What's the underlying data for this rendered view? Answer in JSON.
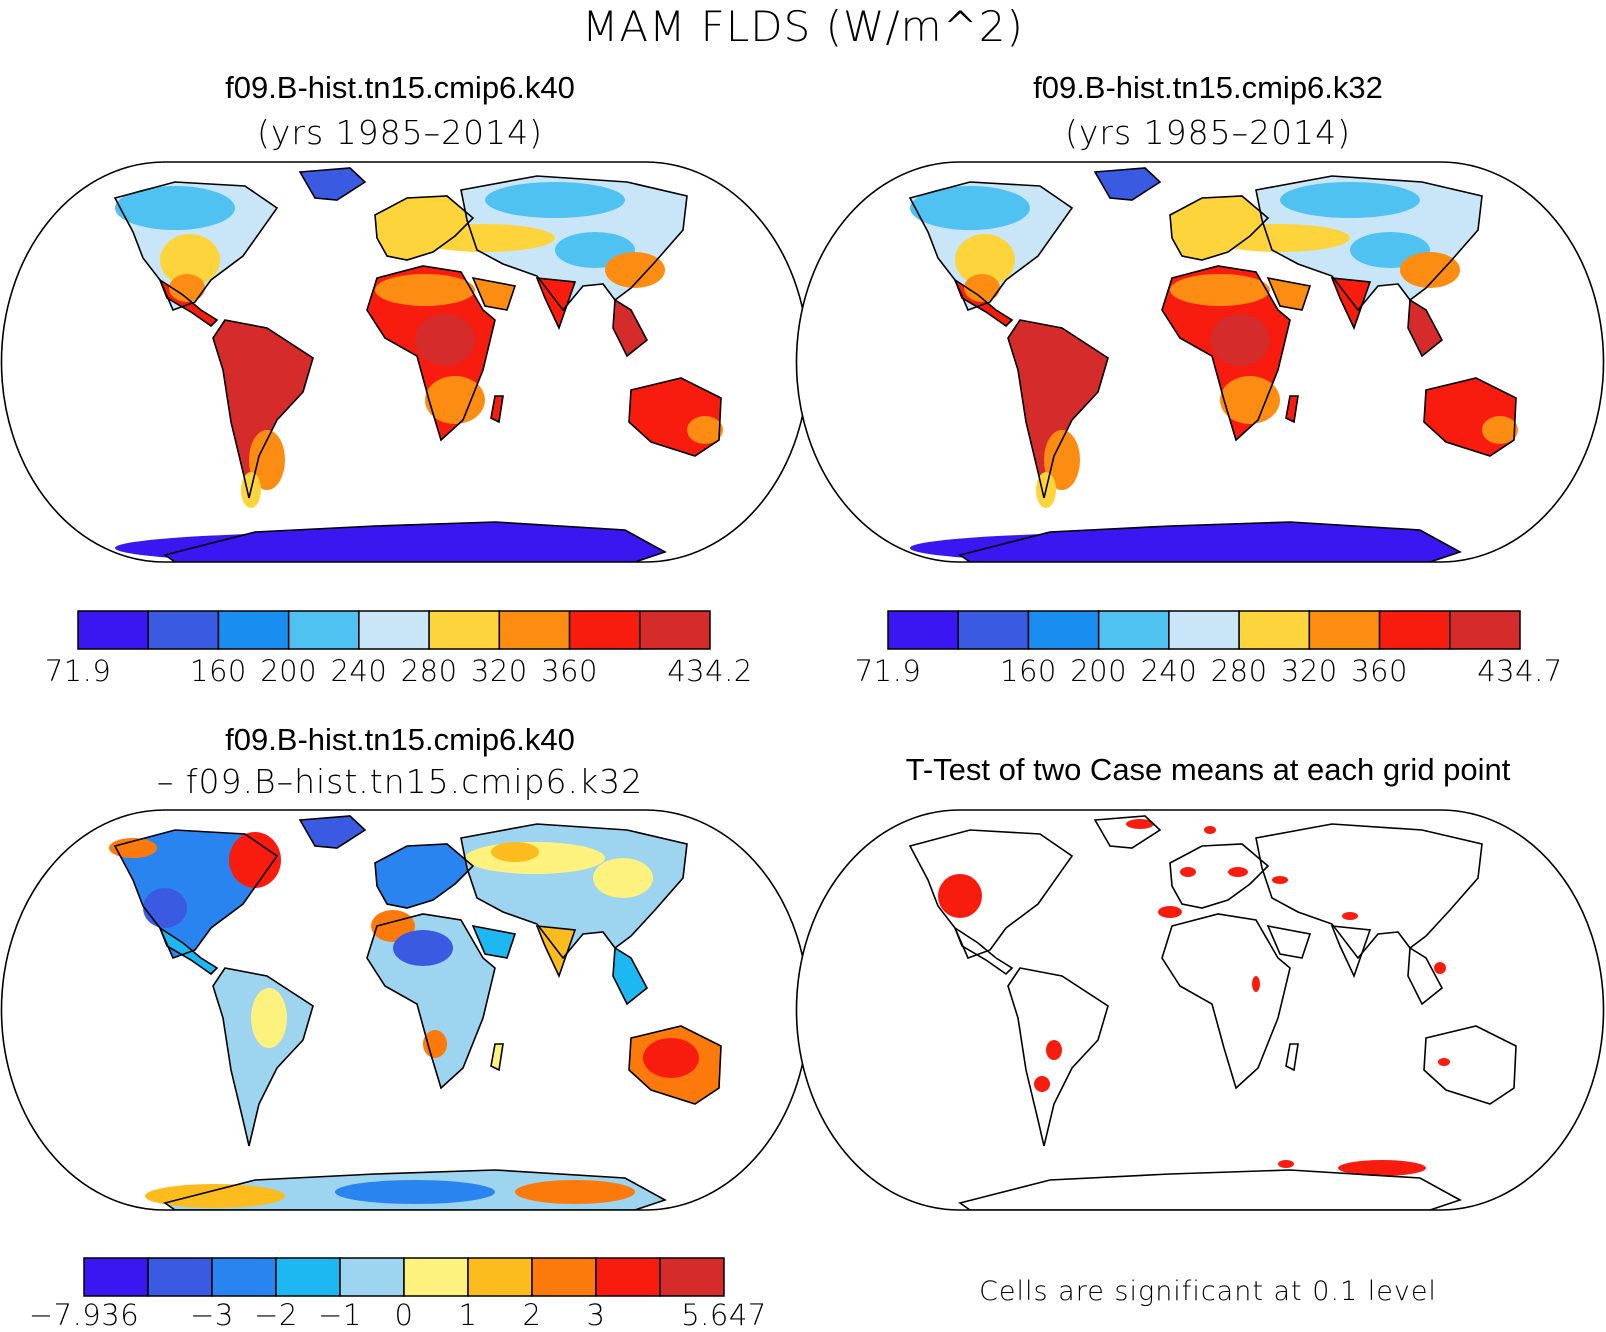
{
  "main_title": "MAM FLDS (W/m^2)",
  "panels": {
    "top_left": {
      "title": "f09.B-hist.tn15.cmip6.k40",
      "subtitle": "(yrs 1985–2014)"
    },
    "top_right": {
      "title": "f09.B-hist.tn15.cmip6.k32",
      "subtitle": "(yrs 1985–2014)"
    },
    "bottom_left": {
      "title": "f09.B-hist.tn15.cmip6.k40",
      "subtitle": "– f09.B–hist.tn15.cmip6.k32"
    },
    "bottom_right": {
      "title": "T-Test of two Case means at each grid point",
      "note": "Cells are significant at 0.1 level"
    }
  },
  "colorbars": {
    "flds_k40": {
      "colors": [
        "#3a16f0",
        "#3b5ae2",
        "#1a8ef0",
        "#4fc2f2",
        "#c8e6f7",
        "#fdd43c",
        "#fd8c12",
        "#f81c0e",
        "#d62b2b"
      ],
      "labels": [
        {
          "text": "71.9",
          "pos": 0
        },
        {
          "text": "160",
          "pos": 2
        },
        {
          "text": "200",
          "pos": 3
        },
        {
          "text": "240",
          "pos": 4
        },
        {
          "text": "280",
          "pos": 5
        },
        {
          "text": "320",
          "pos": 6
        },
        {
          "text": "360",
          "pos": 7
        },
        {
          "text": "434.2",
          "pos": 9
        }
      ]
    },
    "flds_k32": {
      "colors": [
        "#3a16f0",
        "#3b5ae2",
        "#1a8ef0",
        "#4fc2f2",
        "#c8e6f7",
        "#fdd43c",
        "#fd8c12",
        "#f81c0e",
        "#d62b2b"
      ],
      "labels": [
        {
          "text": "71.9",
          "pos": 0
        },
        {
          "text": "160",
          "pos": 2
        },
        {
          "text": "200",
          "pos": 3
        },
        {
          "text": "240",
          "pos": 4
        },
        {
          "text": "280",
          "pos": 5
        },
        {
          "text": "320",
          "pos": 6
        },
        {
          "text": "360",
          "pos": 7
        },
        {
          "text": "434.7",
          "pos": 9
        }
      ]
    },
    "difference": {
      "colors": [
        "#3a16f0",
        "#3b5ae2",
        "#2a84f0",
        "#1db8f2",
        "#9dd4ef",
        "#fdf27e",
        "#fcbc1e",
        "#fc7a0c",
        "#f81c0e",
        "#d62b2b"
      ],
      "labels": [
        {
          "text": "−7.936",
          "pos": 0
        },
        {
          "text": "−3",
          "pos": 2
        },
        {
          "text": "−2",
          "pos": 3
        },
        {
          "text": "−1",
          "pos": 4
        },
        {
          "text": "0",
          "pos": 5
        },
        {
          "text": "1",
          "pos": 6
        },
        {
          "text": "2",
          "pos": 7
        },
        {
          "text": "3",
          "pos": 8
        },
        {
          "text": "5.647",
          "pos": 10
        }
      ]
    }
  }
}
